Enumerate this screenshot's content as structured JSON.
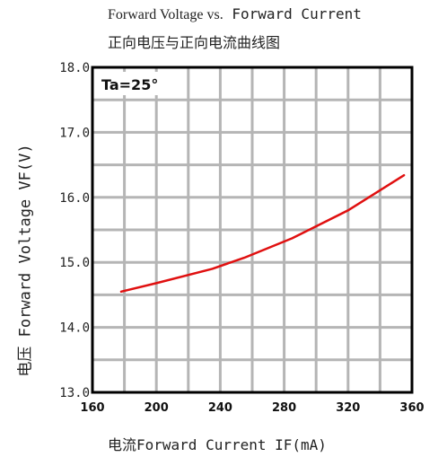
{
  "chart_data": {
    "type": "line",
    "title_line1": "Forward Voltage vs.",
    "title_line1_mono": " Forward Current",
    "title_line2": "正向电压与正向电流曲线图",
    "xlabel": "电流Forward Current IF(mA)",
    "ylabel": "电压 Forward Voltage VF(V)",
    "annotation": "Ta=25°",
    "xlim": [
      160,
      360
    ],
    "ylim": [
      13.0,
      18.0
    ],
    "x_ticks": [
      "160",
      "200",
      "240",
      "280",
      "320",
      "360"
    ],
    "y_ticks": [
      "13.0",
      "14.0",
      "15.0",
      "16.0",
      "17.0",
      "18.0"
    ],
    "grid": true,
    "series": [
      {
        "color": "#e01010",
        "x": [
          178,
          200,
          235,
          255,
          285,
          320,
          355
        ],
        "y": [
          14.55,
          14.68,
          14.9,
          15.07,
          15.37,
          15.8,
          16.34
        ]
      }
    ]
  }
}
